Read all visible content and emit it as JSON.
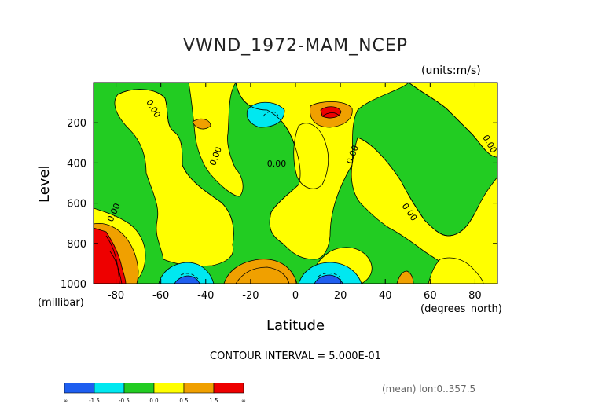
{
  "chart_data": {
    "type": "heatmap",
    "title": "VWND_1972-MAM_NCEP",
    "units": "(units:m/s)",
    "ylabel": "Level",
    "yunit": "(millibar)",
    "xlabel": "Latitude",
    "xunit": "(degrees_north)",
    "xlim": [
      -90,
      90
    ],
    "ylim": [
      1000,
      0
    ],
    "xticks": [
      -80,
      -60,
      -40,
      -20,
      0,
      20,
      40,
      60,
      80
    ],
    "yticks": [
      200,
      400,
      600,
      800,
      1000
    ],
    "contour_interval": "CONTOUR INTERVAL = 5.000E-01",
    "contour_labels": [
      "0.00",
      "0.00",
      "0.00",
      "0.00",
      "0.00",
      "0.00",
      "0.00"
    ],
    "colorbar": {
      "labels": [
        "-∞",
        "-1.5",
        "-0.5",
        "0.0",
        "0.5",
        "1.5",
        "∞"
      ],
      "colors": [
        "#1e5ef0",
        "#00e8f0",
        "#22cc22",
        "#ffff00",
        "#f0a000",
        "#ee0000"
      ]
    },
    "footer": "(mean) lon:0..357.5"
  }
}
